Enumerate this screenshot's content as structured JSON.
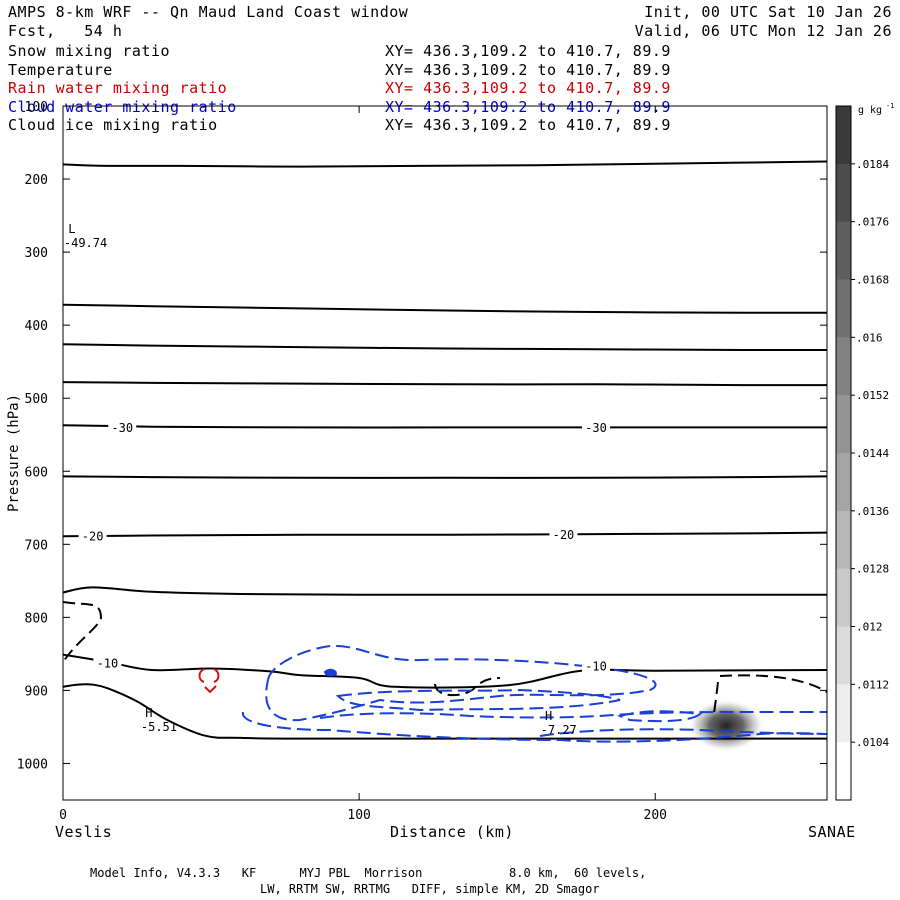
{
  "header": {
    "title": "AMPS 8-km WRF -- Qn Maud Land Coast window",
    "forecast": "Fcst,   54 h",
    "init": "Init, 00 UTC Sat 10 Jan 26",
    "valid": "Valid, 06 UTC Mon 12 Jan 26"
  },
  "fields": [
    {
      "name": "Snow mixing ratio",
      "xy": "XY= 436.3,109.2 to 410.7, 89.9",
      "color": "#000000"
    },
    {
      "name": "Temperature",
      "xy": "XY= 436.3,109.2 to 410.7, 89.9",
      "color": "#000000"
    },
    {
      "name": "Rain water mixing ratio",
      "xy": "XY= 436.3,109.2 to 410.7, 89.9",
      "color": "#cc0000"
    },
    {
      "name": "Cloud water mixing ratio",
      "xy": "XY= 436.3,109.2 to 410.7, 89.9",
      "color": "#0000cc"
    },
    {
      "name": "Cloud ice mixing ratio",
      "xy": "XY= 436.3,109.2 to 410.7, 89.9",
      "color": "#000000"
    }
  ],
  "footer": {
    "line1": "Model Info, V4.3.3   KF      MYJ PBL  Morrison            8.0 km,  60 levels,",
    "line2": "LW, RRTM SW, RRTMG   DIFF, simple KM, 2D Smagor"
  },
  "chart_data": {
    "type": "cross-section contour",
    "xlabel": "Distance (km)",
    "ylabel": "Pressure (hPa)",
    "xlim": [
      0,
      258
    ],
    "ylim": [
      100,
      1050
    ],
    "x_ticks": [
      0,
      100,
      200
    ],
    "y_ticks": [
      100,
      200,
      300,
      400,
      500,
      600,
      700,
      800,
      900,
      1000
    ],
    "left_endpoint": "Veslis",
    "right_endpoint": "SANAE",
    "colorbar": {
      "unit": "g kg",
      "unit_exp": "-1",
      "labels": [
        ".0184",
        ".0176",
        ".0168",
        ".016",
        ".0152",
        ".0144",
        ".0136",
        ".0128",
        ".012",
        ".0112",
        ".0104"
      ]
    },
    "contour_labels": [
      {
        "text": "-30",
        "x": 20,
        "p": 541
      },
      {
        "text": "-30",
        "x": 180,
        "p": 541
      },
      {
        "text": "-20",
        "x": 10,
        "p": 689
      },
      {
        "text": "-20",
        "x": 169,
        "p": 687
      },
      {
        "text": "-10",
        "x": 15,
        "p": 863
      },
      {
        "text": "-10",
        "x": 180,
        "p": 867
      }
    ],
    "extrema": [
      {
        "mark": "L",
        "value": "-49.74",
        "x": 3,
        "p": 279
      },
      {
        "mark": "H",
        "value": "-5.51",
        "x": 29,
        "p": 942
      },
      {
        "mark": "H",
        "value": "-7.27",
        "x": 164,
        "p": 946
      }
    ],
    "temperature_isotherms": [
      {
        "x": [
          0,
          15,
          40,
          80,
          120,
          160,
          200,
          258
        ],
        "p": [
          180,
          182,
          182,
          183,
          182,
          181,
          179,
          176
        ]
      },
      {
        "x": [
          0,
          30,
          80,
          130,
          180,
          230,
          258
        ],
        "p": [
          372,
          374,
          377,
          380,
          382,
          383,
          383
        ]
      },
      {
        "x": [
          0,
          30,
          80,
          130,
          180,
          230,
          258
        ],
        "p": [
          426,
          428,
          430,
          432,
          433,
          434,
          434
        ]
      },
      {
        "x": [
          0,
          30,
          80,
          130,
          180,
          230,
          258
        ],
        "p": [
          478,
          479,
          480,
          481,
          481,
          482,
          482
        ]
      },
      {
        "x": [
          0,
          30,
          80,
          130,
          180,
          230,
          258
        ],
        "p": [
          537,
          539,
          540,
          540,
          540,
          540,
          540
        ]
      },
      {
        "x": [
          0,
          30,
          80,
          130,
          180,
          230,
          258
        ],
        "p": [
          607,
          608,
          609,
          609,
          609,
          608,
          607
        ]
      },
      {
        "x": [
          0,
          30,
          80,
          130,
          180,
          230,
          258
        ],
        "p": [
          689,
          688,
          687,
          687,
          686,
          685,
          684
        ]
      },
      {
        "x": [
          0,
          10,
          30,
          60,
          100,
          150,
          200,
          258
        ],
        "p": [
          766,
          759,
          765,
          768,
          769,
          769,
          769,
          769
        ]
      },
      {
        "x": [
          0,
          15,
          30,
          50,
          70,
          80,
          100,
          112,
          150,
          175,
          200,
          258
        ],
        "p": [
          851,
          861,
          872,
          870,
          874,
          879,
          883,
          895,
          893,
          873,
          873,
          872
        ]
      },
      {
        "x": [
          0,
          5,
          10,
          15,
          25,
          35,
          48,
          60,
          80,
          120,
          180,
          258
        ],
        "p": [
          895,
          892,
          892,
          897,
          915,
          940,
          962,
          965,
          966,
          966,
          966,
          966
        ]
      }
    ],
    "snow_max": {
      "x": 224,
      "p": 948,
      "value": ".0184"
    }
  }
}
